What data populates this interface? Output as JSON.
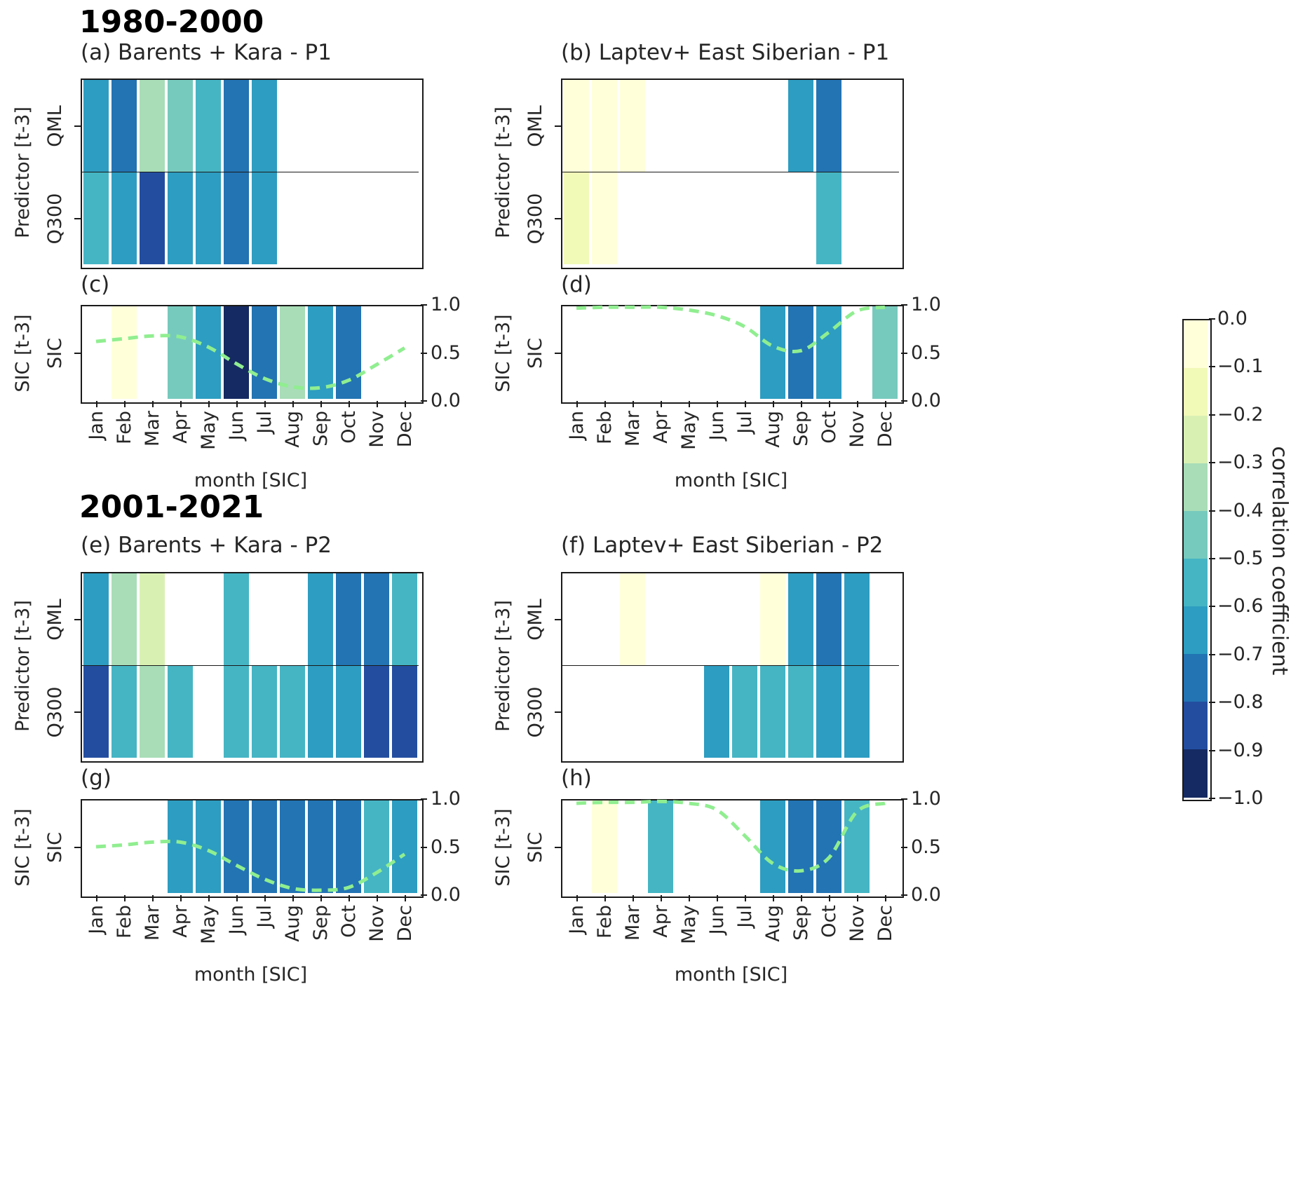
{
  "chart_data": {
    "type": "heatmap",
    "description": "Monthly correlation of lagged predictors (QML, Q300, SIC at t-3) with regional sea-ice concentration, for two periods and two regions; light-green dashed line shows SIC seasonal cycle on the 0-1 right axis.",
    "period_titles": [
      "1980-2000",
      "2001-2021"
    ],
    "months": [
      "Jan",
      "Feb",
      "Mar",
      "Apr",
      "May",
      "Jun",
      "Jul",
      "Aug",
      "Sep",
      "Oct",
      "Nov",
      "Dec"
    ],
    "x_axis_label": "month [SIC]",
    "predictor_axis_label": "Predictor [t-3]",
    "sic_axis_label": "SIC [t-3]",
    "right_axis_tick_labels": [
      "1.0",
      "0.5",
      "0.0"
    ],
    "right_axis_range": [
      0.0,
      1.0
    ],
    "line_color": "#90ee90",
    "colorbar": {
      "label": "correlation coefficient",
      "vmax": 0.0,
      "vmin": -1.0,
      "tick_labels": [
        "0.0",
        "−0.1",
        "−0.2",
        "−0.3",
        "−0.4",
        "−0.5",
        "−0.6",
        "−0.7",
        "−0.8",
        "−0.9",
        "−1.0"
      ],
      "colors": [
        "#ffffda",
        "#f2fab8",
        "#d9f0b3",
        "#a8ddb7",
        "#76cabd",
        "#45b5c4",
        "#2d9dc1",
        "#2274b3",
        "#234ea0",
        "#152a62"
      ]
    },
    "panels": [
      {
        "id": "a",
        "title": "(a) Barents + Kara - P1",
        "rows": [
          {
            "label": "QML",
            "values": [
              -0.62,
              -0.72,
              -0.32,
              -0.48,
              -0.52,
              -0.75,
              -0.65,
              null,
              null,
              null,
              null,
              null
            ]
          },
          {
            "label": "Q300",
            "values": [
              -0.55,
              -0.62,
              -0.82,
              -0.65,
              -0.68,
              -0.75,
              -0.65,
              null,
              null,
              null,
              null,
              null
            ]
          }
        ]
      },
      {
        "id": "b",
        "title": "(b) Laptev+ East Siberian - P1",
        "rows": [
          {
            "label": "QML",
            "values": [
              -0.04,
              -0.04,
              -0.04,
              null,
              null,
              null,
              null,
              null,
              -0.68,
              -0.78,
              null,
              null
            ]
          },
          {
            "label": "Q300",
            "values": [
              -0.15,
              -0.08,
              null,
              null,
              null,
              null,
              null,
              null,
              null,
              -0.52,
              null,
              null
            ]
          }
        ]
      },
      {
        "id": "c",
        "title": "(c)",
        "rows": [
          {
            "label": "SIC",
            "values": [
              null,
              -0.05,
              null,
              -0.45,
              -0.62,
              -0.92,
              -0.72,
              -0.38,
              -0.62,
              -0.72,
              null,
              null
            ]
          }
        ],
        "line_values": [
          0.62,
          0.65,
          0.68,
          0.67,
          0.56,
          0.38,
          0.22,
          0.13,
          0.12,
          0.2,
          0.37,
          0.55
        ]
      },
      {
        "id": "d",
        "title": "(d)",
        "rows": [
          {
            "label": "SIC",
            "values": [
              null,
              null,
              null,
              null,
              null,
              null,
              null,
              -0.68,
              -0.75,
              -0.62,
              null,
              -0.45
            ]
          }
        ],
        "line_values": [
          0.98,
          0.99,
          0.99,
          0.99,
          0.96,
          0.9,
          0.78,
          0.57,
          0.52,
          0.72,
          0.95,
          0.99
        ]
      },
      {
        "id": "e",
        "title": "(e) Barents + Kara - P2",
        "rows": [
          {
            "label": "QML",
            "values": [
              -0.68,
              -0.38,
              -0.22,
              null,
              null,
              -0.55,
              null,
              null,
              -0.62,
              -0.75,
              -0.75,
              -0.55
            ]
          },
          {
            "label": "Q300",
            "values": [
              -0.85,
              -0.55,
              -0.38,
              -0.5,
              null,
              -0.5,
              -0.52,
              -0.55,
              -0.62,
              -0.7,
              -0.82,
              -0.82
            ]
          }
        ]
      },
      {
        "id": "f",
        "title": "(f) Laptev+ East Siberian - P2",
        "rows": [
          {
            "label": "QML",
            "values": [
              null,
              null,
              -0.05,
              null,
              null,
              null,
              null,
              -0.05,
              -0.65,
              -0.78,
              -0.68,
              null
            ]
          },
          {
            "label": "Q300",
            "values": [
              null,
              null,
              null,
              null,
              null,
              -0.62,
              -0.5,
              -0.5,
              -0.55,
              -0.65,
              -0.62,
              null
            ]
          }
        ]
      },
      {
        "id": "g",
        "title": "(g)",
        "rows": [
          {
            "label": "SIC",
            "values": [
              null,
              null,
              null,
              -0.68,
              -0.68,
              -0.75,
              -0.75,
              -0.78,
              -0.78,
              -0.75,
              -0.55,
              -0.65
            ]
          }
        ],
        "line_values": [
          0.5,
          0.52,
          0.55,
          0.55,
          0.46,
          0.3,
          0.15,
          0.05,
          0.03,
          0.06,
          0.22,
          0.42
        ]
      },
      {
        "id": "h",
        "title": "(h)",
        "rows": [
          {
            "label": "SIC",
            "values": [
              null,
              -0.05,
              null,
              -0.5,
              null,
              null,
              null,
              -0.62,
              -0.75,
              -0.72,
              -0.5,
              null
            ]
          }
        ],
        "line_values": [
          0.97,
          0.98,
          0.98,
          0.99,
          0.97,
          0.9,
          0.62,
          0.32,
          0.24,
          0.38,
          0.88,
          0.97
        ]
      }
    ]
  }
}
